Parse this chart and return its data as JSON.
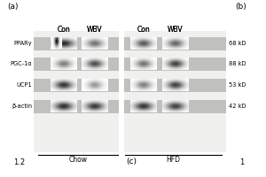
{
  "panel_label_a": "(a)",
  "panel_label_b": "(b)",
  "panel_label_c": "(c)",
  "col_labels": [
    "Con",
    "WBV",
    "Con",
    "WBV"
  ],
  "group_labels": [
    "Chow",
    "HFD"
  ],
  "row_labels": [
    "PPARγ",
    "PGC-1α",
    "UCP1",
    "β-actin"
  ],
  "mol_weights": [
    "68 kD",
    "88 kD",
    "53 kD",
    "42 kD"
  ],
  "bottom_numbers_left": "1.2",
  "bottom_numbers_right": "1",
  "fig_width": 3.0,
  "fig_height": 2.0,
  "panel_bg": "#c8c8c4",
  "strip_bg": "#b0b0ac",
  "white_gap": "#e8e8e4"
}
